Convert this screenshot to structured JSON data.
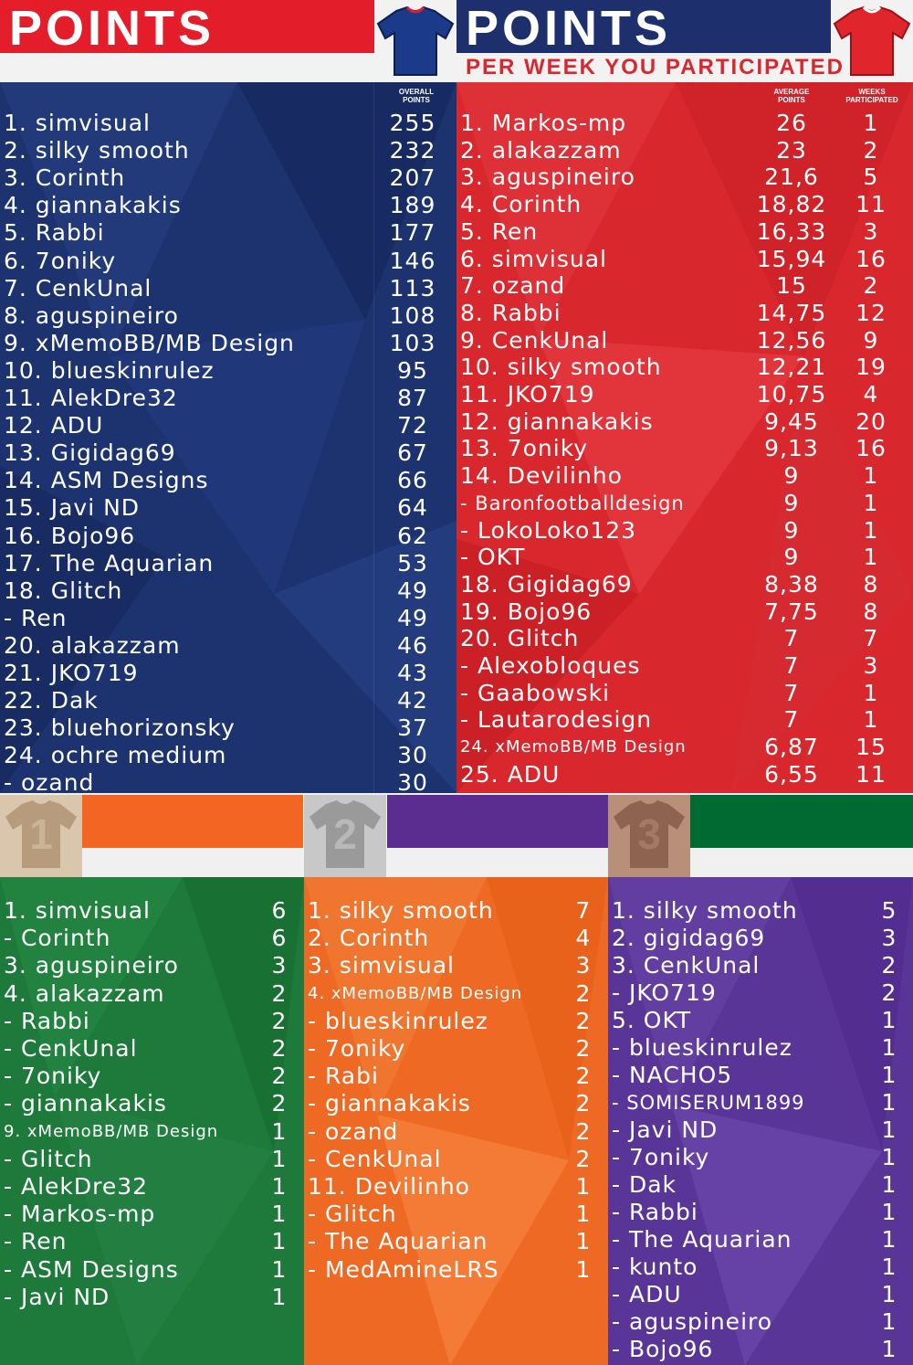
{
  "colors": {
    "blue": "#1c3370",
    "red": "#d9272e",
    "green": "#1d7a3a",
    "orange": "#ee6a24",
    "purple": "#5a3598",
    "orange_bar": "#f26522",
    "purple_bar": "#5b2d91",
    "green_bar": "#006a33"
  },
  "icons": [
    "blue-jersey-icon",
    "red-jersey-icon",
    "rank-1-jersey-icon",
    "rank-2-jersey-icon",
    "rank-3-jersey-icon"
  ],
  "left_header": {
    "title": "POINTS"
  },
  "right_header": {
    "title": "POINTS",
    "subtitle": "PER WEEK YOU PARTICIPATED"
  },
  "badges": {
    "first": "1",
    "second": "2",
    "third": "3"
  },
  "overall": {
    "col_header": "OVERALL POINTS",
    "rows": [
      {
        "name": "1. simvisual",
        "points": "255"
      },
      {
        "name": "2. silky smooth",
        "points": "232"
      },
      {
        "name": "3. Corinth",
        "points": "207"
      },
      {
        "name": "4. giannakakis",
        "points": "189"
      },
      {
        "name": "5. Rabbi",
        "points": "177"
      },
      {
        "name": "6. 7oniky",
        "points": "146"
      },
      {
        "name": "7. CenkUnal",
        "points": "113"
      },
      {
        "name": "8. aguspineiro",
        "points": "108"
      },
      {
        "name": "9. xMemoBB/MB Design",
        "points": "103"
      },
      {
        "name": "10. blueskinrulez",
        "points": "95"
      },
      {
        "name": "11. AlekDre32",
        "points": "87"
      },
      {
        "name": "12. ADU",
        "points": "72"
      },
      {
        "name": "13. Gigidag69",
        "points": "67"
      },
      {
        "name": "14. ASM Designs",
        "points": "66"
      },
      {
        "name": "15. Javi ND",
        "points": "64"
      },
      {
        "name": "16. Bojo96",
        "points": "62"
      },
      {
        "name": "17. The Aquarian",
        "points": "53"
      },
      {
        "name": "18. Glitch",
        "points": "49"
      },
      {
        "name": "-   Ren",
        "points": "49"
      },
      {
        "name": "20. alakazzam",
        "points": "46"
      },
      {
        "name": "21. JKO719",
        "points": "43"
      },
      {
        "name": "22. Dak",
        "points": "42"
      },
      {
        "name": "23. bluehorizonsky",
        "points": "37"
      },
      {
        "name": "24. ochre medium",
        "points": "30"
      },
      {
        "name": "-    ozand",
        "points": "30"
      }
    ]
  },
  "average": {
    "col_header_avg": "AVERAGE POINTS",
    "col_header_weeks": "WEEKS PARTICIPATED",
    "rows": [
      {
        "name": "1. Markos-mp",
        "avg": "26",
        "weeks": "1"
      },
      {
        "name": "2. alakazzam",
        "avg": "23",
        "weeks": "2"
      },
      {
        "name": "3. aguspineiro",
        "avg": "21,6",
        "weeks": "5"
      },
      {
        "name": "4. Corinth",
        "avg": "18,82",
        "weeks": "11"
      },
      {
        "name": "5. Ren",
        "avg": "16,33",
        "weeks": "3"
      },
      {
        "name": "6. simvisual",
        "avg": "15,94",
        "weeks": "16"
      },
      {
        "name": "7. ozand",
        "avg": "15",
        "weeks": "2"
      },
      {
        "name": "8. Rabbi",
        "avg": "14,75",
        "weeks": "12"
      },
      {
        "name": "9. CenkUnal",
        "avg": "12,56",
        "weeks": "9"
      },
      {
        "name": "10. silky smooth",
        "avg": "12,21",
        "weeks": "19"
      },
      {
        "name": "11. JKO719",
        "avg": "10,75",
        "weeks": "4"
      },
      {
        "name": "12. giannakakis",
        "avg": "9,45",
        "weeks": "20"
      },
      {
        "name": "13. 7oniky",
        "avg": "9,13",
        "weeks": "16"
      },
      {
        "name": "14. Devilinho",
        "avg": "9",
        "weeks": "1"
      },
      {
        "name": "-    Baronfootballdesign",
        "avg": "9",
        "weeks": "1"
      },
      {
        "name": "-    LokoLoko123",
        "avg": "9",
        "weeks": "1"
      },
      {
        "name": "-    OKT",
        "avg": "9",
        "weeks": "1"
      },
      {
        "name": "18. Gigidag69",
        "avg": "8,38",
        "weeks": "8"
      },
      {
        "name": "19. Bojo96",
        "avg": "7,75",
        "weeks": "8"
      },
      {
        "name": "20. Glitch",
        "avg": "7",
        "weeks": "7"
      },
      {
        "name": "-    Alexobloques",
        "avg": "7",
        "weeks": "3"
      },
      {
        "name": "-    Gaabowski",
        "avg": "7",
        "weeks": "1"
      },
      {
        "name": "-    Lautarodesign",
        "avg": "7",
        "weeks": "1"
      },
      {
        "name": "24. xMemoBB/MB Design",
        "avg": "6,87",
        "weeks": "15"
      },
      {
        "name": "25. ADU",
        "avg": "6,55",
        "weeks": "11"
      }
    ]
  },
  "first_place": {
    "rows": [
      {
        "name": "1. simvisual",
        "count": "6"
      },
      {
        "name": "-   Corinth",
        "count": "6"
      },
      {
        "name": "3. aguspineiro",
        "count": "3"
      },
      {
        "name": "4. alakazzam",
        "count": "2"
      },
      {
        "name": "-   Rabbi",
        "count": "2"
      },
      {
        "name": "-   CenkUnal",
        "count": "2"
      },
      {
        "name": "-   7oniky",
        "count": "2"
      },
      {
        "name": "-   giannakakis",
        "count": "2"
      },
      {
        "name": "9. xMemoBB/MB Design",
        "count": "1"
      },
      {
        "name": "-   Glitch",
        "count": "1"
      },
      {
        "name": "-   AlekDre32",
        "count": "1"
      },
      {
        "name": "-   Markos-mp",
        "count": "1"
      },
      {
        "name": "-   Ren",
        "count": "1"
      },
      {
        "name": "-   ASM Designs",
        "count": "1"
      },
      {
        "name": "-   Javi ND",
        "count": "1"
      }
    ]
  },
  "second_place": {
    "rows": [
      {
        "name": "1. silky smooth",
        "count": "7"
      },
      {
        "name": "2. Corinth",
        "count": "4"
      },
      {
        "name": "3. simvisual",
        "count": "3"
      },
      {
        "name": "4. xMemoBB/MB Design",
        "count": "2"
      },
      {
        "name": "-   blueskinrulez",
        "count": "2"
      },
      {
        "name": "-   7oniky",
        "count": "2"
      },
      {
        "name": "-   Rabi",
        "count": "2"
      },
      {
        "name": "-   giannakakis",
        "count": "2"
      },
      {
        "name": "-   ozand",
        "count": "2"
      },
      {
        "name": "-   CenkUnal",
        "count": "2"
      },
      {
        "name": "11. Devilinho",
        "count": "1"
      },
      {
        "name": "-    Glitch",
        "count": "1"
      },
      {
        "name": "-    The Aquarian",
        "count": "1"
      },
      {
        "name": "-    MedAmineLRS",
        "count": "1"
      }
    ]
  },
  "third_place": {
    "rows": [
      {
        "name": "1. silky smooth",
        "count": "5"
      },
      {
        "name": "2. gigidag69",
        "count": "3"
      },
      {
        "name": "3. CenkUnal",
        "count": "2"
      },
      {
        "name": "-   JKO719",
        "count": "2"
      },
      {
        "name": "5. OKT",
        "count": "1"
      },
      {
        "name": "-   blueskinrulez",
        "count": "1"
      },
      {
        "name": "-   NACHO5",
        "count": "1"
      },
      {
        "name": "-   SOMISERUM1899",
        "count": "1"
      },
      {
        "name": "-   Javi ND",
        "count": "1"
      },
      {
        "name": "-   7oniky",
        "count": "1"
      },
      {
        "name": "-   Dak",
        "count": "1"
      },
      {
        "name": "-   Rabbi",
        "count": "1"
      },
      {
        "name": "-   The Aquarian",
        "count": "1"
      },
      {
        "name": "-   kunto",
        "count": "1"
      },
      {
        "name": "-   ADU",
        "count": "1"
      },
      {
        "name": "-   aguspineiro",
        "count": "1"
      },
      {
        "name": "-   Bojo96",
        "count": "1"
      }
    ]
  }
}
